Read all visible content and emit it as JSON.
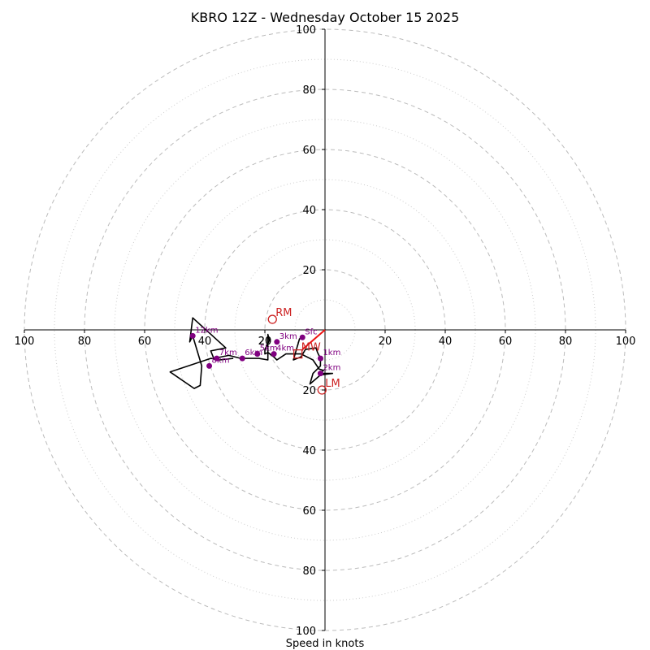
{
  "chart_data": {
    "type": "hodograph",
    "title": "KBRO 12Z - Wednesday October 15 2025",
    "xlabel": "Speed in knots",
    "ylabel": "",
    "range": [
      -100,
      100
    ],
    "ring_major": [
      20,
      40,
      60,
      80,
      100
    ],
    "ring_minor": [
      10,
      30,
      50,
      70,
      90
    ],
    "tick_values": [
      100,
      80,
      60,
      40,
      20
    ],
    "center_label": "20",
    "colors": {
      "major_ring": "#bbbbbb",
      "minor_ring": "#cccccc",
      "axis": "#000000",
      "trace": "#000000",
      "points": "#800080",
      "storm": "#cc2222",
      "shear": "#ee1111"
    },
    "trace": [
      [
        -7.5,
        -2.5
      ],
      [
        -8.5,
        -3
      ],
      [
        -10.5,
        -10
      ],
      [
        -8,
        -9
      ],
      [
        -6.5,
        -6.5
      ],
      [
        -3,
        -6
      ],
      [
        -2.5,
        -7.5
      ],
      [
        -1.5,
        -9.5
      ],
      [
        -1.5,
        -12
      ],
      [
        -4,
        -14.5
      ],
      [
        -5,
        -18
      ],
      [
        -1.5,
        -15
      ],
      [
        2.5,
        -14.5
      ],
      [
        -1.5,
        -14.5
      ],
      [
        -0.5,
        -13.5
      ],
      [
        -2,
        -13
      ],
      [
        -4,
        -10
      ],
      [
        -8,
        -8
      ],
      [
        -13,
        -8
      ],
      [
        -16,
        -10
      ],
      [
        -17,
        -9
      ],
      [
        -19,
        -7.5
      ],
      [
        -20,
        -8
      ],
      [
        -20,
        -6.5
      ],
      [
        -18.5,
        -3.5
      ],
      [
        -19,
        -1.5
      ],
      [
        -19,
        -10
      ],
      [
        -22,
        -9.5
      ],
      [
        -28,
        -9.5
      ],
      [
        -32,
        -8.5
      ],
      [
        -37,
        -9.5
      ],
      [
        -38,
        -7
      ],
      [
        -33,
        -6
      ],
      [
        -44,
        4
      ],
      [
        -45,
        -4
      ],
      [
        -44,
        -2
      ],
      [
        -41,
        -12
      ],
      [
        -41.5,
        -18.5
      ],
      [
        -43.5,
        -19.5
      ],
      [
        -51.5,
        -14
      ],
      [
        -38,
        -9.5
      ],
      [
        -35,
        -10
      ],
      [
        -30.5,
        -9.5
      ]
    ],
    "points": [
      {
        "label": "Sfc",
        "u": -7.5,
        "v": -2.5
      },
      {
        "label": "1km",
        "u": -1.5,
        "v": -9.5
      },
      {
        "label": "2km",
        "u": -1.5,
        "v": -14.5
      },
      {
        "label": "3km",
        "u": -16,
        "v": -4
      },
      {
        "label": "4km",
        "u": -17,
        "v": -8
      },
      {
        "label": "5km",
        "u": -22.5,
        "v": -8
      },
      {
        "label": "6km",
        "u": -27.5,
        "v": -9.5
      },
      {
        "label": "7km",
        "u": -36,
        "v": -9.5
      },
      {
        "label": "8km",
        "u": -38.5,
        "v": -12
      },
      {
        "label": "12km",
        "u": -44,
        "v": -2
      }
    ],
    "storm_motion": [
      {
        "label": "RM",
        "u": -17.5,
        "v": 3.5,
        "marker": "circle"
      },
      {
        "label": "LM",
        "u": -1,
        "v": -20,
        "marker": "circle"
      },
      {
        "label": "MW",
        "u": -9,
        "v": -8,
        "marker": "square"
      }
    ],
    "shear_vector": {
      "from": [
        -7.5,
        -6.5
      ],
      "to": [
        0,
        0
      ]
    }
  }
}
